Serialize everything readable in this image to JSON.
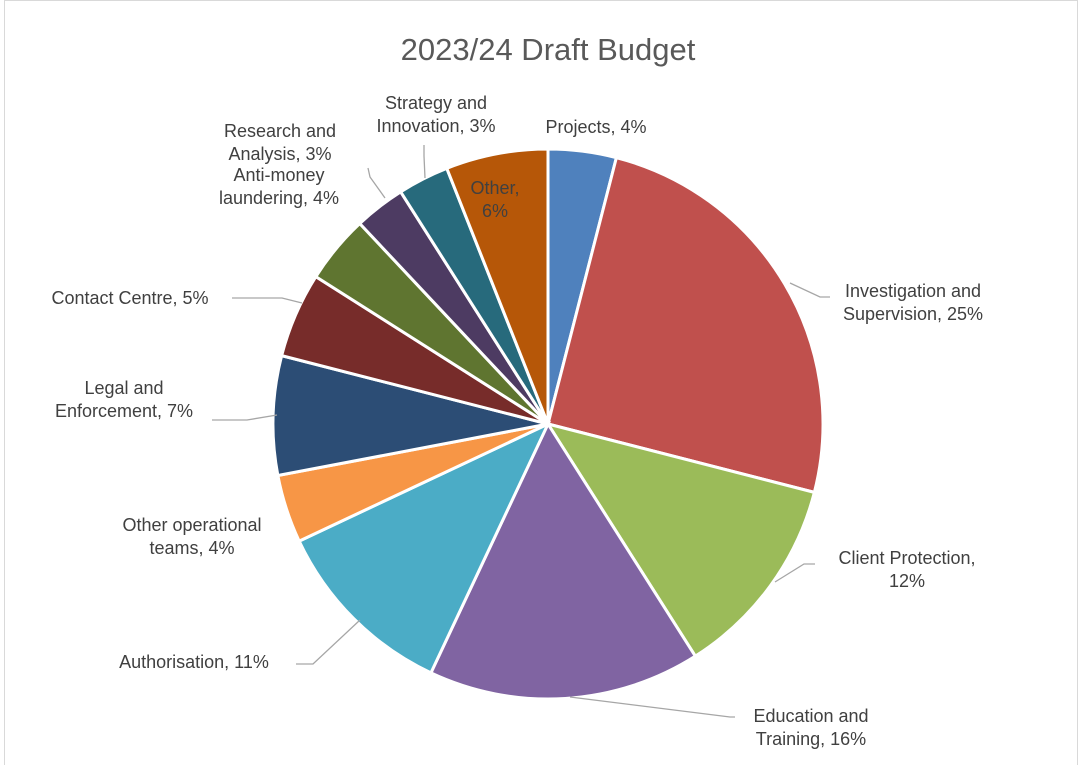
{
  "chart_data": {
    "type": "pie",
    "title": "2023/24 Draft Budget",
    "slices": [
      {
        "name": "Projects",
        "value": 4,
        "label": [
          "Projects, 4%"
        ],
        "color": "#4f81bd"
      },
      {
        "name": "Investigation and Supervision",
        "value": 25,
        "label": [
          "Investigation and",
          "Supervision, 25%"
        ],
        "color": "#c0504d"
      },
      {
        "name": "Client Protection",
        "value": 12,
        "label": [
          "Client Protection,",
          "12%"
        ],
        "color": "#9bbb59"
      },
      {
        "name": "Education and Training",
        "value": 16,
        "label": [
          "Education and",
          "Training, 16%"
        ],
        "color": "#8064a2"
      },
      {
        "name": "Authorisation",
        "value": 11,
        "label": [
          "Authorisation, 11%"
        ],
        "color": "#4bacc6"
      },
      {
        "name": "Other operational teams",
        "value": 4,
        "label": [
          "Other operational",
          "teams, 4%"
        ],
        "color": "#f79646"
      },
      {
        "name": "Legal and Enforcement",
        "value": 7,
        "label": [
          "Legal and",
          "Enforcement, 7%"
        ],
        "color": "#2c4d75"
      },
      {
        "name": "Contact Centre",
        "value": 5,
        "label": [
          "Contact Centre, 5%"
        ],
        "color": "#772c2a"
      },
      {
        "name": "Anti-money laundering",
        "value": 4,
        "label": [
          "Anti-money",
          "laundering, 4%"
        ],
        "color": "#5f7530"
      },
      {
        "name": "Research and Analysis",
        "value": 3,
        "label": [
          "Research and",
          "Analysis, 3%"
        ],
        "color": "#4d3b62"
      },
      {
        "name": "Strategy and Innovation",
        "value": 3,
        "label": [
          "Strategy and",
          "Innovation, 3%"
        ],
        "color": "#276a7c"
      },
      {
        "name": "Other",
        "value": 6,
        "label": [
          "Other,",
          "6%"
        ],
        "color": "#b65708"
      }
    ]
  }
}
